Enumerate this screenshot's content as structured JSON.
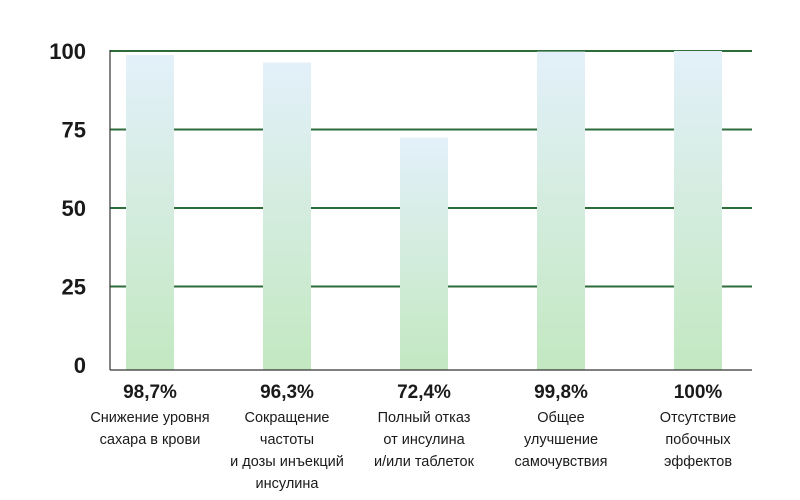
{
  "chart_data": {
    "type": "bar",
    "ylim": [
      0,
      100
    ],
    "yticks": [
      0,
      25,
      50,
      75,
      100
    ],
    "grid": true,
    "gridline_color": "#2e6b3a",
    "bar_gradient": [
      "#e3f0fa",
      "#c3e8c1"
    ],
    "values": [
      98.7,
      96.3,
      72.4,
      99.8,
      100
    ],
    "value_labels": [
      "98,7%",
      "96,3%",
      "72,4%",
      "99,8%",
      "100%"
    ],
    "categories": [
      [
        "Снижение уровня",
        "сахара в крови"
      ],
      [
        "Сокращение",
        "частоты",
        "и дозы инъекций",
        "инсулина"
      ],
      [
        "Полный отказ",
        "от инсулина",
        "и/или таблеток"
      ],
      [
        "Общее",
        "улучшение",
        "самочувствия"
      ],
      [
        "Отсутствие",
        "побочных",
        "эффектов"
      ]
    ]
  }
}
